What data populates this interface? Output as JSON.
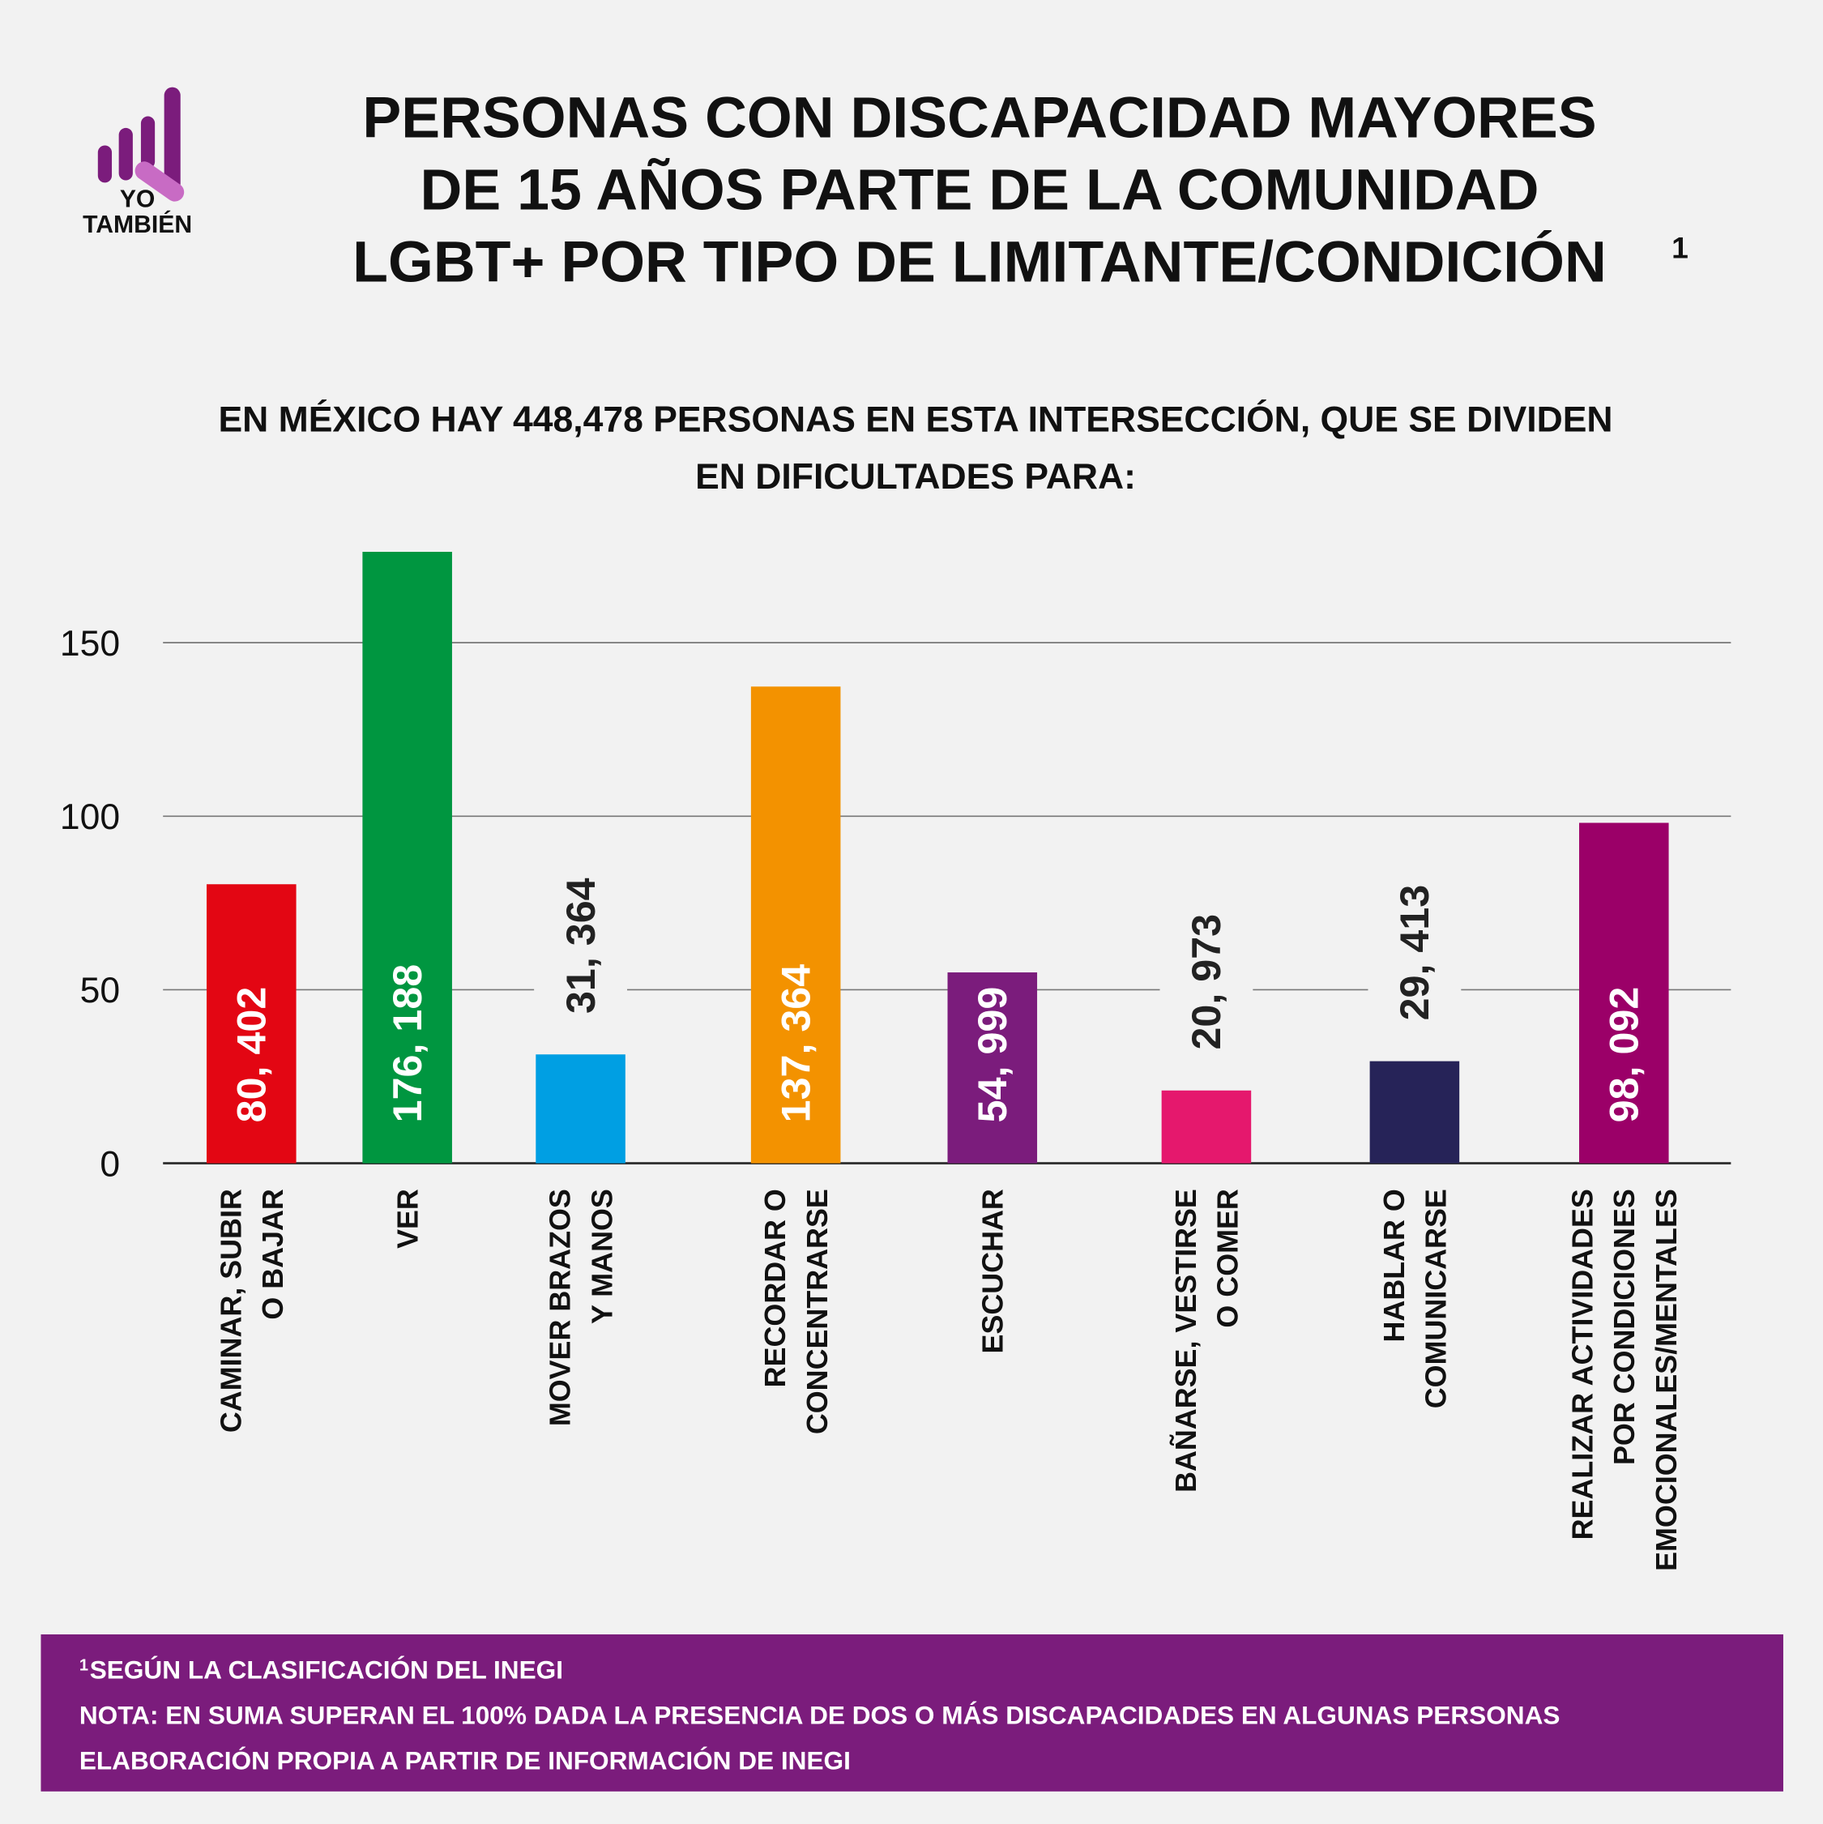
{
  "chart_data": {
    "type": "bar",
    "logo": "YO\nTAMBIÉN",
    "title": "PERSONAS CON DISCAPACIDAD MAYORES\nDE 15 AÑOS PARTE DE LA COMUNIDAD\nLGBT+ POR TIPO DE LIMITANTE/CONDICIÓN",
    "title_note": "1",
    "subtitle": "EN MÉXICO HAY 448,478 PERSONAS EN ESTA INTERSECCIÓN, QUE SE DIVIDEN\nEN DIFICULTADES PARA:",
    "categories": [
      "CAMINAR, SUBIR\nO BAJAR",
      "VER",
      "MOVER BRAZOS\nY MANOS",
      "RECORDAR O\nCONCENTRARSE",
      "ESCUCHAR",
      "BAÑARSE, VESTIRSE\nO COMER",
      "HABLAR O\nCOMUNICARSE",
      "REALIZAR ACTIVIDADES\nPOR CONDICIONES\nEMOCIONALES/MENTALES"
    ],
    "values": [
      80.402,
      176.188,
      31.364,
      137.364,
      54.999,
      20.973,
      29.413,
      98.092
    ],
    "value_labels": [
      "80, 402",
      "176, 188",
      "31, 364",
      "137, 364",
      "54, 999",
      "20, 973",
      "29, 413",
      "98, 092"
    ],
    "colors": [
      "#e30613",
      "#009640",
      "#009fe3",
      "#f39200",
      "#7b1c7c",
      "#e5186d",
      "#262358",
      "#9b0068"
    ],
    "ylim": [
      0,
      180
    ],
    "yticks": [
      0,
      50,
      100,
      150
    ],
    "grid": true,
    "footnotes": [
      "SEGÚN LA CLASIFICACIÓN DEL INEGI",
      "NOTA: EN SUMA SUPERAN EL 100% DADA LA PRESENCIA DE DOS O MÁS DISCAPACIDADES EN ALGUNAS PERSONAS",
      "ELABORACIÓN PROPIA A PARTIR DE INFORMACIÓN DE INEGI"
    ],
    "footnote_marker": "1"
  }
}
